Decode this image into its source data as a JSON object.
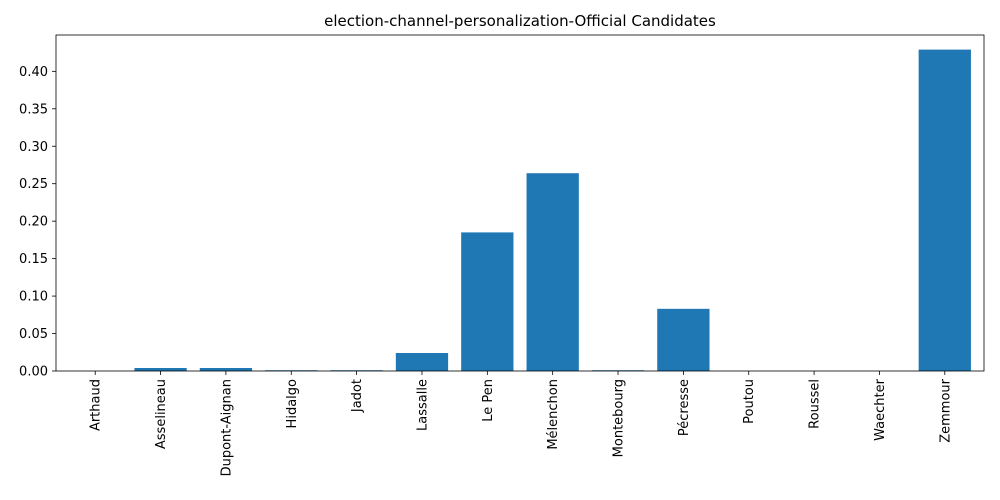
{
  "chart_data": {
    "type": "bar",
    "title": "election-channel-personalization-Official Candidates",
    "xlabel": "",
    "ylabel": "",
    "categories": [
      "Arthaud",
      "Asselineau",
      "Dupont-Aignan",
      "Hidalgo",
      "Jadot",
      "Lassalle",
      "Le Pen",
      "Mélenchon",
      "Montebourg",
      "Pécresse",
      "Poutou",
      "Roussel",
      "Waechter",
      "Zemmour"
    ],
    "values": [
      0.0,
      0.004,
      0.004,
      0.001,
      0.001,
      0.024,
      0.185,
      0.264,
      0.001,
      0.083,
      0.0,
      0.0,
      0.0,
      0.429
    ],
    "ylim": [
      0,
      0.4485
    ],
    "yticks": [
      0.0,
      0.05,
      0.1,
      0.15,
      0.2,
      0.25,
      0.3,
      0.35,
      0.4
    ],
    "ytick_labels": [
      "0.00",
      "0.05",
      "0.10",
      "0.15",
      "0.20",
      "0.25",
      "0.30",
      "0.35",
      "0.40"
    ],
    "bar_color": "#1f77b4",
    "grid": false,
    "legend": "none"
  }
}
